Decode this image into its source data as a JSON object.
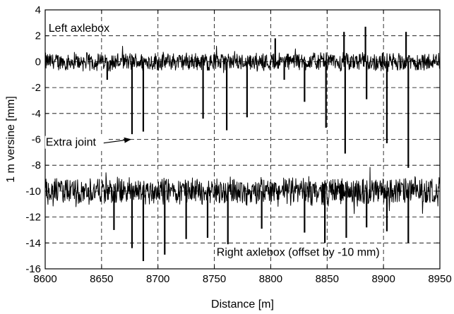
{
  "chart_data": {
    "type": "line",
    "title": "",
    "xlabel": "Distance [m]",
    "ylabel": "1 m versine [mm]",
    "xlim": [
      8600,
      8950
    ],
    "ylim": [
      -16,
      4
    ],
    "xticks": [
      8600,
      8650,
      8700,
      8750,
      8800,
      8850,
      8900,
      8950
    ],
    "yticks": [
      -16,
      -14,
      -12,
      -10,
      -8,
      -6,
      -4,
      -2,
      0,
      2,
      4
    ],
    "grid": true,
    "line_color": "#000000",
    "series": [
      {
        "name": "Left axlebox",
        "baseline": 0,
        "noise_amplitude": 0.8,
        "peaks": [
          {
            "x": 8655,
            "y": -1.4
          },
          {
            "x": 8677,
            "y": -5.6
          },
          {
            "x": 8687,
            "y": -5.4
          },
          {
            "x": 8740,
            "y": -4.4
          },
          {
            "x": 8761,
            "y": -5.3
          },
          {
            "x": 8779,
            "y": -4.3
          },
          {
            "x": 8804,
            "y": 1.8
          },
          {
            "x": 8812,
            "y": -1.4
          },
          {
            "x": 8830,
            "y": -3.1
          },
          {
            "x": 8849,
            "y": -5.1
          },
          {
            "x": 8865,
            "y": 2.3
          },
          {
            "x": 8866,
            "y": -7.1
          },
          {
            "x": 8884,
            "y": 2.7
          },
          {
            "x": 8885,
            "y": -2.9
          },
          {
            "x": 8903,
            "y": -6.3
          },
          {
            "x": 8920,
            "y": 2.3
          },
          {
            "x": 8922,
            "y": -8.2
          }
        ]
      },
      {
        "name": "Right axlebox (offset by -10 mm)",
        "baseline": -10,
        "noise_amplitude": 1.2,
        "peaks": [
          {
            "x": 8661,
            "y": -13.0
          },
          {
            "x": 8677,
            "y": -14.4
          },
          {
            "x": 8687,
            "y": -15.4
          },
          {
            "x": 8706,
            "y": -14.9
          },
          {
            "x": 8725,
            "y": -13.7
          },
          {
            "x": 8744,
            "y": -13.6
          },
          {
            "x": 8762,
            "y": -14.1
          },
          {
            "x": 8792,
            "y": -12.9
          },
          {
            "x": 8830,
            "y": -13.2
          },
          {
            "x": 8848,
            "y": -14.0
          },
          {
            "x": 8867,
            "y": -13.6
          },
          {
            "x": 8885,
            "y": -12.8
          },
          {
            "x": 8903,
            "y": -13.1
          },
          {
            "x": 8922,
            "y": -14.0
          }
        ]
      }
    ],
    "annotations": [
      {
        "text": "Left axlebox",
        "x": 8603,
        "y": 2.3
      },
      {
        "text": "Extra joint",
        "x": 8600.5,
        "y": -6.5,
        "arrow_to": {
          "x": 8677,
          "y": -6.0
        }
      },
      {
        "text": "Right axlebox (offset by -10 mm)",
        "x": 8752,
        "y": -15.0
      }
    ]
  }
}
